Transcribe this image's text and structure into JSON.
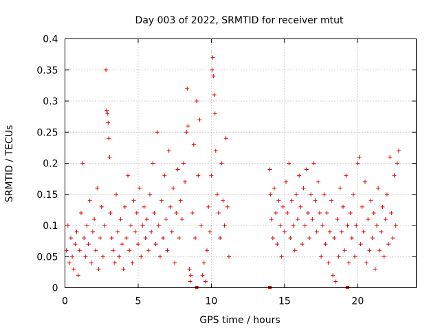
{
  "chart_data": {
    "type": "scatter",
    "title": "Day 003 of 2022, SRMTID for receiver mtut",
    "xlabel": "GPS time / hours",
    "ylabel": "SRMTID / TECUs",
    "xlim": [
      0,
      24
    ],
    "ylim": [
      0,
      0.4
    ],
    "xticks": [
      0,
      5,
      10,
      15,
      20
    ],
    "xtick_labels": [
      "0",
      "5",
      "10",
      "15",
      "20"
    ],
    "yticks": [
      0,
      0.05,
      0.1,
      0.15,
      0.2,
      0.25,
      0.3,
      0.35,
      0.4
    ],
    "ytick_labels": [
      "0",
      "0.05",
      "0.1",
      "0.15",
      "0.2",
      "0.25",
      "0.3",
      "0.35",
      "0.4"
    ],
    "grid": true,
    "marker": "+",
    "color": "#e00000",
    "series": [
      {
        "name": "mtut",
        "points": [
          [
            0.1,
            0.06
          ],
          [
            0.2,
            0.1
          ],
          [
            0.3,
            0.04
          ],
          [
            0.4,
            0.08
          ],
          [
            0.5,
            0.05
          ],
          [
            0.6,
            0.03
          ],
          [
            0.7,
            0.07
          ],
          [
            0.8,
            0.09
          ],
          [
            0.9,
            0.02
          ],
          [
            1.0,
            0.06
          ],
          [
            1.1,
            0.12
          ],
          [
            1.2,
            0.2
          ],
          [
            1.3,
            0.08
          ],
          [
            1.4,
            0.05
          ],
          [
            1.5,
            0.1
          ],
          [
            1.6,
            0.07
          ],
          [
            1.7,
            0.14
          ],
          [
            1.8,
            0.04
          ],
          [
            1.9,
            0.09
          ],
          [
            2.0,
            0.11
          ],
          [
            2.1,
            0.06
          ],
          [
            2.2,
            0.16
          ],
          [
            2.3,
            0.03
          ],
          [
            2.4,
            0.08
          ],
          [
            2.5,
            0.13
          ],
          [
            2.6,
            0.05
          ],
          [
            2.7,
            0.1
          ],
          [
            2.8,
            0.35
          ],
          [
            2.85,
            0.285
          ],
          [
            2.9,
            0.28
          ],
          [
            2.95,
            0.265
          ],
          [
            3.0,
            0.24
          ],
          [
            3.05,
            0.21
          ],
          [
            3.1,
            0.12
          ],
          [
            3.2,
            0.08
          ],
          [
            3.3,
            0.06
          ],
          [
            3.4,
            0.04
          ],
          [
            3.5,
            0.15
          ],
          [
            3.6,
            0.09
          ],
          [
            3.7,
            0.05
          ],
          [
            3.8,
            0.11
          ],
          [
            3.9,
            0.07
          ],
          [
            4.0,
            0.03
          ],
          [
            4.1,
            0.13
          ],
          [
            4.2,
            0.08
          ],
          [
            4.3,
            0.18
          ],
          [
            4.4,
            0.06
          ],
          [
            4.5,
            0.1
          ],
          [
            4.6,
            0.04
          ],
          [
            4.7,
            0.14
          ],
          [
            4.8,
            0.09
          ],
          [
            4.9,
            0.12
          ],
          [
            5.0,
            0.07
          ],
          [
            5.1,
            0.16
          ],
          [
            5.2,
            0.05
          ],
          [
            5.3,
            0.1
          ],
          [
            5.4,
            0.13
          ],
          [
            5.5,
            0.08
          ],
          [
            5.6,
            0.11
          ],
          [
            5.7,
            0.06
          ],
          [
            5.8,
            0.15
          ],
          [
            5.9,
            0.09
          ],
          [
            6.0,
            0.2
          ],
          [
            6.1,
            0.12
          ],
          [
            6.2,
            0.07
          ],
          [
            6.3,
            0.25
          ],
          [
            6.4,
            0.1
          ],
          [
            6.5,
            0.05
          ],
          [
            6.6,
            0.14
          ],
          [
            6.7,
            0.08
          ],
          [
            6.8,
            0.18
          ],
          [
            6.9,
            0.11
          ],
          [
            7.0,
            0.06
          ],
          [
            7.1,
            0.22
          ],
          [
            7.2,
            0.13
          ],
          [
            7.3,
            0.09
          ],
          [
            7.4,
            0.16
          ],
          [
            7.5,
            0.04
          ],
          [
            7.6,
            0.12
          ],
          [
            7.7,
            0.19
          ],
          [
            7.8,
            0.08
          ],
          [
            7.9,
            0.14
          ],
          [
            8.0,
            0.11
          ],
          [
            8.1,
            0.2
          ],
          [
            8.2,
            0.17
          ],
          [
            8.3,
            0.25
          ],
          [
            8.35,
            0.32
          ],
          [
            8.4,
            0.26
          ],
          [
            8.5,
            0.03
          ],
          [
            8.55,
            0.01
          ],
          [
            8.6,
            0.02
          ],
          [
            8.7,
            0.12
          ],
          [
            8.8,
            0.23
          ],
          [
            8.9,
            0.08
          ],
          [
            9.0,
            0.3
          ],
          [
            9.1,
            0.18
          ],
          [
            9.2,
            0.27
          ],
          [
            9.3,
            0.1
          ],
          [
            9.4,
            0.02
          ],
          [
            9.5,
            0.04
          ],
          [
            9.6,
            0.01
          ],
          [
            9.7,
            0.06
          ],
          [
            9.8,
            0.13
          ],
          [
            9.9,
            0.09
          ],
          [
            10.0,
            0.18
          ],
          [
            10.05,
            0.35
          ],
          [
            10.1,
            0.37
          ],
          [
            10.15,
            0.34
          ],
          [
            10.2,
            0.31
          ],
          [
            10.25,
            0.28
          ],
          [
            10.3,
            0.22
          ],
          [
            10.4,
            0.15
          ],
          [
            10.5,
            0.12
          ],
          [
            10.6,
            0.08
          ],
          [
            10.7,
            0.2
          ],
          [
            10.8,
            0.14
          ],
          [
            10.9,
            0.1
          ],
          [
            11.0,
            0.24
          ],
          [
            11.1,
            0.13
          ],
          [
            11.2,
            0.05
          ],
          [
            14.0,
            0.19
          ],
          [
            14.05,
            0.15
          ],
          [
            14.1,
            0.11
          ],
          [
            14.2,
            0.08
          ],
          [
            14.3,
            0.16
          ],
          [
            14.4,
            0.12
          ],
          [
            14.5,
            0.07
          ],
          [
            14.6,
            0.14
          ],
          [
            14.7,
            0.1
          ],
          [
            14.8,
            0.05
          ],
          [
            14.9,
            0.13
          ],
          [
            15.0,
            0.09
          ],
          [
            15.1,
            0.17
          ],
          [
            15.2,
            0.12
          ],
          [
            15.3,
            0.2
          ],
          [
            15.4,
            0.08
          ],
          [
            15.5,
            0.14
          ],
          [
            15.6,
            0.1
          ],
          [
            15.7,
            0.06
          ],
          [
            15.8,
            0.15
          ],
          [
            15.9,
            0.11
          ],
          [
            16.0,
            0.18
          ],
          [
            16.1,
            0.13
          ],
          [
            16.2,
            0.07
          ],
          [
            16.3,
            0.16
          ],
          [
            16.4,
            0.1
          ],
          [
            16.5,
            0.19
          ],
          [
            16.6,
            0.12
          ],
          [
            16.7,
            0.08
          ],
          [
            16.8,
            0.15
          ],
          [
            16.9,
            0.11
          ],
          [
            17.0,
            0.2
          ],
          [
            17.1,
            0.14
          ],
          [
            17.2,
            0.09
          ],
          [
            17.3,
            0.17
          ],
          [
            17.4,
            0.12
          ],
          [
            17.5,
            0.05
          ],
          [
            17.6,
            0.1
          ],
          [
            17.7,
            0.15
          ],
          [
            17.8,
            0.07
          ],
          [
            17.9,
            0.12
          ],
          [
            18.0,
            0.04
          ],
          [
            18.1,
            0.09
          ],
          [
            18.2,
            0.14
          ],
          [
            18.3,
            0.02
          ],
          [
            18.4,
            0.08
          ],
          [
            18.5,
            0.01
          ],
          [
            18.6,
            0.11
          ],
          [
            18.7,
            0.05
          ],
          [
            18.8,
            0.16
          ],
          [
            18.9,
            0.09
          ],
          [
            19.0,
            0.13
          ],
          [
            19.1,
            0.06
          ],
          [
            19.2,
            0.18
          ],
          [
            19.3,
            0.1
          ],
          [
            19.4,
            0.04
          ],
          [
            19.5,
            0.12
          ],
          [
            19.6,
            0.08
          ],
          [
            19.7,
            0.15
          ],
          [
            19.8,
            0.05
          ],
          [
            19.9,
            0.1
          ],
          [
            20.0,
            0.2
          ],
          [
            20.1,
            0.21
          ],
          [
            20.2,
            0.07
          ],
          [
            20.3,
            0.13
          ],
          [
            20.4,
            0.09
          ],
          [
            20.5,
            0.17
          ],
          [
            20.6,
            0.04
          ],
          [
            20.7,
            0.11
          ],
          [
            20.8,
            0.06
          ],
          [
            20.9,
            0.14
          ],
          [
            21.0,
            0.08
          ],
          [
            21.1,
            0.12
          ],
          [
            21.2,
            0.03
          ],
          [
            21.3,
            0.1
          ],
          [
            21.4,
            0.16
          ],
          [
            21.5,
            0.06
          ],
          [
            21.6,
            0.09
          ],
          [
            21.7,
            0.13
          ],
          [
            21.8,
            0.05
          ],
          [
            21.9,
            0.11
          ],
          [
            22.0,
            0.15
          ],
          [
            22.1,
            0.07
          ],
          [
            22.2,
            0.21
          ],
          [
            22.3,
            0.12
          ],
          [
            22.4,
            0.08
          ],
          [
            22.5,
            0.18
          ],
          [
            22.6,
            0.1
          ],
          [
            22.7,
            0.2
          ],
          [
            22.8,
            0.22
          ]
        ]
      }
    ],
    "zero_markers_x": [
      9.0,
      14.0,
      19.3
    ]
  }
}
